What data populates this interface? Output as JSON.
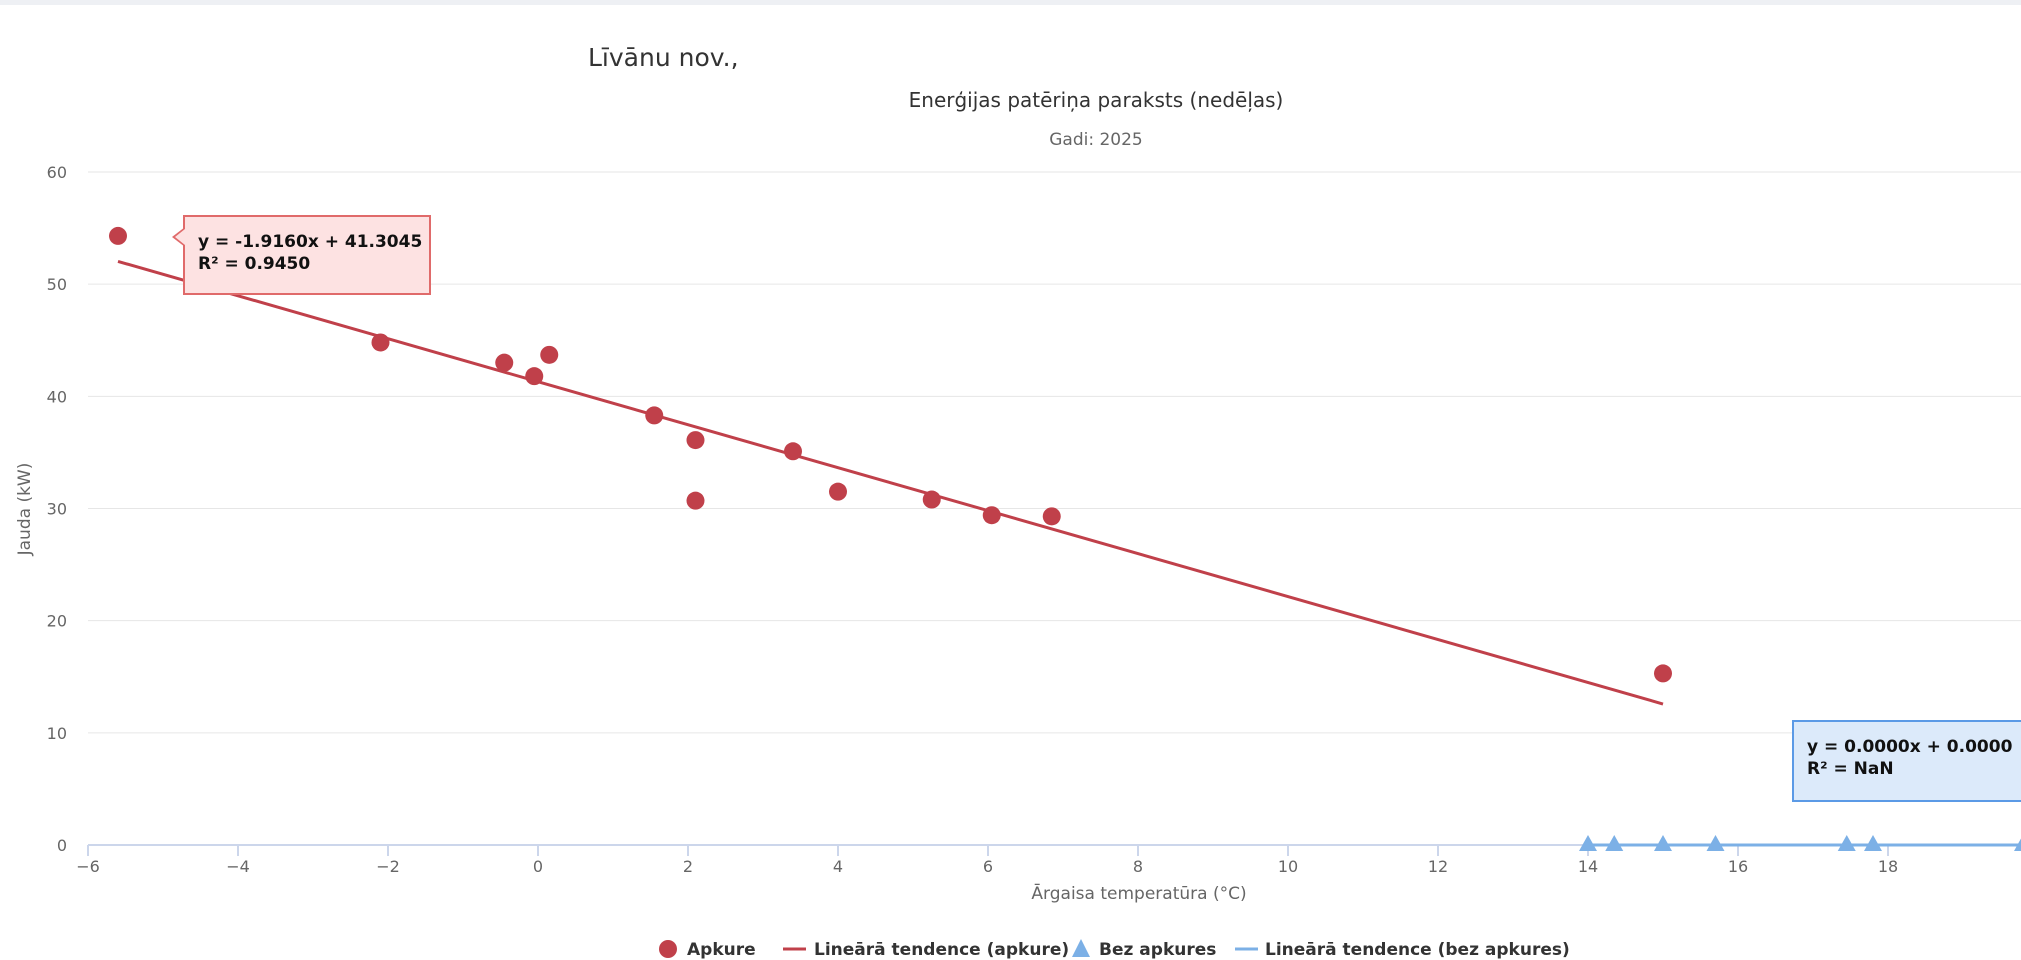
{
  "page": {
    "region_title": "Līvānu nov.,"
  },
  "chart_data": {
    "type": "scatter",
    "title": "Enerģijas patēriņa paraksts (nedēļas)",
    "subtitle": "Gadi: 2025",
    "xlabel": "Ārgaisa temperatūra (°C)",
    "ylabel": "Jauda (kW)",
    "xlim": [
      -6,
      20
    ],
    "ylim": [
      0,
      60
    ],
    "x_ticks": [
      -6,
      -4,
      -2,
      0,
      2,
      4,
      6,
      8,
      10,
      12,
      14,
      16,
      18
    ],
    "y_ticks": [
      0,
      10,
      20,
      30,
      40,
      50,
      60
    ],
    "grid": true,
    "legend_position": "bottom-center",
    "colors": {
      "apkure": "#c0404a",
      "bez_apkures": "#7cb0e6"
    },
    "series": [
      {
        "name": "Apkure",
        "marker": "circle",
        "points": [
          [
            -5.6,
            54.3
          ],
          [
            -4.4,
            51.2
          ],
          [
            -2.1,
            44.8
          ],
          [
            -0.45,
            43.0
          ],
          [
            -0.05,
            41.8
          ],
          [
            0.15,
            43.7
          ],
          [
            1.55,
            38.3
          ],
          [
            2.1,
            36.1
          ],
          [
            2.1,
            30.7
          ],
          [
            3.4,
            35.1
          ],
          [
            4.0,
            31.5
          ],
          [
            5.25,
            30.8
          ],
          [
            6.05,
            29.4
          ],
          [
            6.85,
            29.3
          ],
          [
            15.0,
            15.3
          ]
        ]
      },
      {
        "name": "Lineārā tendence (apkure)",
        "marker": "line",
        "points": [
          [
            -5.6,
            52.03
          ],
          [
            15.0,
            12.57
          ]
        ],
        "tooltip": {
          "equation": "y = -1.9160x + 41.3045",
          "r2": "R² = 0.9450"
        }
      },
      {
        "name": "Bez apkures",
        "marker": "triangle",
        "points": [
          [
            14.0,
            0
          ],
          [
            14.35,
            0
          ],
          [
            15.0,
            0
          ],
          [
            15.7,
            0
          ],
          [
            17.45,
            0
          ],
          [
            17.8,
            0
          ],
          [
            19.8,
            0
          ]
        ]
      },
      {
        "name": "Lineārā tendence (bez apkures)",
        "marker": "line",
        "points": [
          [
            14.0,
            0
          ],
          [
            19.8,
            0
          ]
        ],
        "tooltip": {
          "equation": "y = 0.0000x + 0.0000",
          "r2": "R² = NaN"
        }
      }
    ]
  }
}
